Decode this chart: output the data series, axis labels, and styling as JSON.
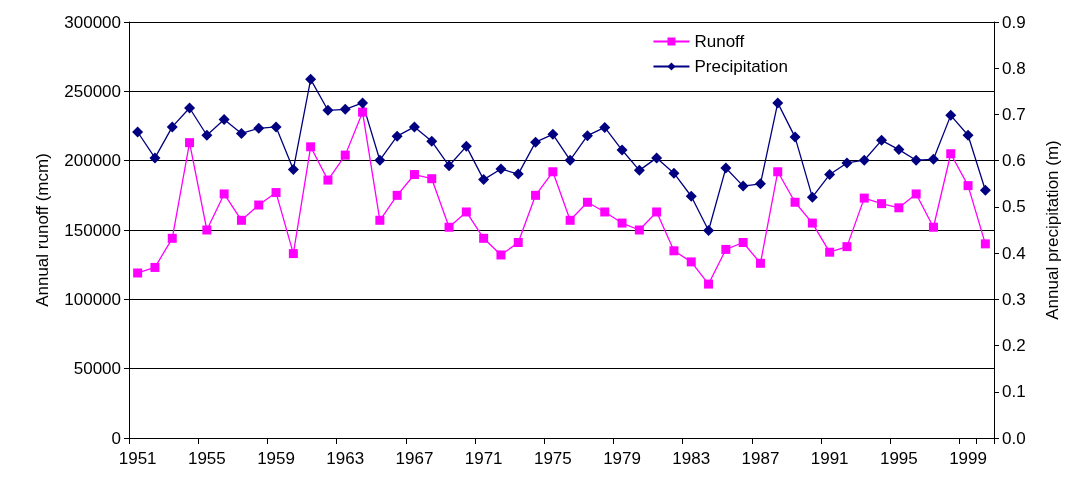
{
  "chart_data": {
    "type": "line",
    "categories": [
      "1951",
      null,
      null,
      null,
      "1955",
      null,
      null,
      null,
      "1959",
      null,
      null,
      null,
      "1963",
      null,
      null,
      null,
      "1967",
      null,
      null,
      null,
      "1971",
      null,
      null,
      null,
      "1975",
      null,
      null,
      null,
      "1979",
      null,
      null,
      null,
      "1983",
      null,
      null,
      null,
      "1987",
      null,
      null,
      null,
      "1991",
      null,
      null,
      null,
      "1995",
      null,
      null,
      null,
      "1999",
      null
    ],
    "series": [
      {
        "name": "Runoff",
        "color": "#ff00ff",
        "marker": "square",
        "values": [
          119000,
          123000,
          144000,
          213000,
          150000,
          176000,
          157000,
          168000,
          177000,
          133000,
          210000,
          186000,
          204000,
          235000,
          157000,
          175000,
          190000,
          187000,
          152000,
          163000,
          144000,
          132000,
          141000,
          175000,
          192000,
          157000,
          170000,
          163000,
          155000,
          150000,
          163000,
          135000,
          127000,
          111000,
          136000,
          141000,
          126000,
          192000,
          170000,
          155000,
          134000,
          138000,
          173000,
          169000,
          166000,
          176000,
          152000,
          205000,
          182000,
          140000
        ]
      },
      {
        "name": "Precipitation",
        "color": "#000080",
        "marker": "diamond",
        "axis": "y2",
        "values": [
          0.662,
          0.606,
          0.673,
          0.714,
          0.655,
          0.689,
          0.659,
          0.67,
          0.673,
          0.581,
          0.776,
          0.709,
          0.711,
          0.725,
          0.601,
          0.653,
          0.673,
          0.642,
          0.589,
          0.631,
          0.559,
          0.582,
          0.571,
          0.64,
          0.657,
          0.601,
          0.654,
          0.672,
          0.623,
          0.579,
          0.606,
          0.573,
          0.523,
          0.449,
          0.584,
          0.545,
          0.55,
          0.725,
          0.651,
          0.521,
          0.57,
          0.595,
          0.601,
          0.644,
          0.624,
          0.601,
          0.603,
          0.698,
          0.655,
          0.536
        ]
      }
    ],
    "ylabel": "Annual runoff (mcm)",
    "y2label": "Annual precipitation (m)",
    "ylim": [
      0,
      300000
    ],
    "yticks": [
      0,
      50000,
      100000,
      150000,
      200000,
      250000,
      300000
    ],
    "y2lim": [
      0,
      0.9
    ],
    "y2ticks": [
      {
        "value": 0,
        "label": "0.0"
      },
      0.1,
      0.2,
      0.3,
      0.4,
      0.5,
      0.6,
      0.7,
      0.8,
      0.9
    ],
    "grid": "y",
    "legend": "top right",
    "line_style": "solid"
  }
}
